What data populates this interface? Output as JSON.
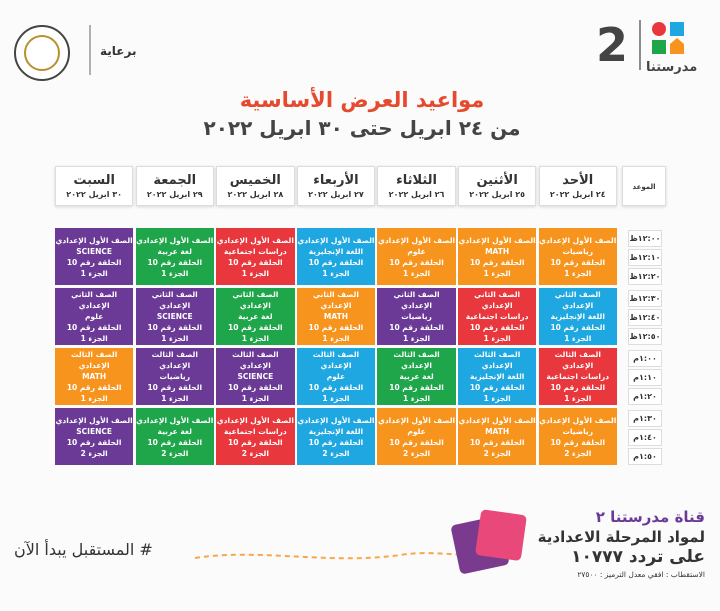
{
  "header": {
    "brand": "مدرستنا",
    "channel_number": "2",
    "sponsor": "برعاية"
  },
  "title": "مواعيد العرض الأساسية",
  "subtitle": "من ٢٤ ابريل حتى ٣٠ ابريل ٢٠٢٢",
  "table": {
    "time_label": "الموعد",
    "columns": [
      {
        "day": "الأحد",
        "date": "٢٤ ابريل ٢٠٢٢"
      },
      {
        "day": "الأثنين",
        "date": "٢٥ ابريل ٢٠٢٢"
      },
      {
        "day": "الثلاثاء",
        "date": "٢٦ ابريل ٢٠٢٢"
      },
      {
        "day": "الأربعاء",
        "date": "٢٧ ابريل ٢٠٢٢"
      },
      {
        "day": "الخميس",
        "date": "٢٨ ابريل ٢٠٢٢"
      },
      {
        "day": "الجمعة",
        "date": "٢٩ ابريل ٢٠٢٢"
      },
      {
        "day": "السبت",
        "date": "٣٠ ابريل ٢٠٢٢"
      }
    ],
    "times": [
      "١٢:٠٠ظ",
      "١٢:١٠ظ",
      "١٢:٢٠ظ",
      "١٢:٣٠ظ",
      "١٢:٤٠ظ",
      "١٢:٥٠ظ",
      "١:٠٠م",
      "١:١٠م",
      "١:٢٠م",
      "١:٣٠م",
      "١:٤٠م",
      "١:٥٠م"
    ],
    "rows": [
      [
        {
          "color": "#f7941d",
          "lines": [
            "الصف الأول الإعدادي",
            "رياضيات",
            "الحلقة رقم 10",
            "الجزء 1"
          ]
        },
        {
          "color": "#f7941d",
          "lines": [
            "الصف الأول الإعدادي",
            "MATH",
            "الحلقة رقم 10",
            "الجزء 1"
          ]
        },
        {
          "color": "#f7941d",
          "lines": [
            "الصف الأول الإعدادي",
            "علوم",
            "الحلقة رقم 10",
            "الجزء 1"
          ]
        },
        {
          "color": "#1ea7e0",
          "lines": [
            "الصف الأول الإعدادي",
            "اللغة الإنجليزية",
            "الحلقة رقم 10",
            "الجزء 1"
          ]
        },
        {
          "color": "#e8383d",
          "lines": [
            "الصف الأول الإعدادي",
            "دراسات اجتماعية",
            "الحلقة رقم 10",
            "الجزء 1"
          ]
        },
        {
          "color": "#1fa54a",
          "lines": [
            "الصف الأول الإعدادي",
            "لغة عربية",
            "الحلقة رقم 10",
            "الجزء 1"
          ]
        },
        {
          "color": "#6a3a96",
          "lines": [
            "الصف الأول الإعدادي",
            "SCIENCE",
            "الحلقة رقم 10",
            "الجزء 1"
          ]
        }
      ],
      [
        {
          "color": "#1ea7e0",
          "lines": [
            "الصف الثاني الإعدادي",
            "اللغة الإنجليزية",
            "الحلقة رقم 10",
            "الجزء 1"
          ]
        },
        {
          "color": "#e8383d",
          "lines": [
            "الصف الثاني الإعدادي",
            "دراسات اجتماعية",
            "الحلقة رقم 10",
            "الجزء 1"
          ]
        },
        {
          "color": "#6a3a96",
          "lines": [
            "الصف الثاني الإعدادي",
            "رياضيات",
            "الحلقة رقم 10",
            "الجزء 1"
          ]
        },
        {
          "color": "#f7941d",
          "lines": [
            "الصف الثاني الإعدادي",
            "MATH",
            "الحلقة رقم 10",
            "الجزء 1"
          ]
        },
        {
          "color": "#1fa54a",
          "lines": [
            "الصف الثاني الإعدادي",
            "لغة عربية",
            "الحلقة رقم 10",
            "الجزء 1"
          ]
        },
        {
          "color": "#6a3a96",
          "lines": [
            "الصف الثاني الإعدادي",
            "SCIENCE",
            "الحلقة رقم 10",
            "الجزء 1"
          ]
        },
        {
          "color": "#6a3a96",
          "lines": [
            "الصف الثاني الإعدادي",
            "علوم",
            "الحلقة رقم 10",
            "الجزء 1"
          ]
        }
      ],
      [
        {
          "color": "#e8383d",
          "lines": [
            "الصف الثالث الإعدادي",
            "دراسات اجتماعية",
            "الحلقة رقم 10",
            "الجزء 1"
          ]
        },
        {
          "color": "#1ea7e0",
          "lines": [
            "الصف الثالث الإعدادي",
            "اللغة الإنجليزية",
            "الحلقة رقم 10",
            "الجزء 1"
          ]
        },
        {
          "color": "#1fa54a",
          "lines": [
            "الصف الثالث الإعدادي",
            "لغة عربية",
            "الحلقة رقم 10",
            "الجزء 1"
          ]
        },
        {
          "color": "#1ea7e0",
          "lines": [
            "الصف الثالث الإعدادي",
            "علوم",
            "الحلقة رقم 10",
            "الجزء 1"
          ]
        },
        {
          "color": "#6a3a96",
          "lines": [
            "الصف الثالث الإعدادي",
            "SCIENCE",
            "الحلقة رقم 10",
            "الجزء 1"
          ]
        },
        {
          "color": "#6a3a96",
          "lines": [
            "الصف الثالث الإعدادي",
            "رياضيات",
            "الحلقة رقم 10",
            "الجزء 1"
          ]
        },
        {
          "color": "#f7941d",
          "lines": [
            "الصف الثالث الإعدادي",
            "MATH",
            "الحلقة رقم 10",
            "الجزء 1"
          ]
        }
      ],
      [
        {
          "color": "#f7941d",
          "lines": [
            "الصف الأول الإعدادي",
            "رياضيات",
            "الحلقة رقم 10",
            "الجزء 2"
          ]
        },
        {
          "color": "#f7941d",
          "lines": [
            "الصف الأول الإعدادي",
            "MATH",
            "الحلقة رقم 10",
            "الجزء 2"
          ]
        },
        {
          "color": "#f7941d",
          "lines": [
            "الصف الأول الإعدادي",
            "علوم",
            "الحلقة رقم 10",
            "الجزء 2"
          ]
        },
        {
          "color": "#1ea7e0",
          "lines": [
            "الصف الأول الإعدادي",
            "اللغة الإنجليزية",
            "الحلقة رقم 10",
            "الجزء 2"
          ]
        },
        {
          "color": "#e8383d",
          "lines": [
            "الصف الأول الإعدادي",
            "دراسات اجتماعية",
            "الحلقة رقم 10",
            "الجزء 2"
          ]
        },
        {
          "color": "#1fa54a",
          "lines": [
            "الصف الأول الإعدادي",
            "لغة عربية",
            "الحلقة رقم 10",
            "الجزء 2"
          ]
        },
        {
          "color": "#6a3a96",
          "lines": [
            "الصف الأول الإعدادي",
            "SCIENCE",
            "الحلقة رقم 10",
            "الجزء 2"
          ]
        }
      ]
    ]
  },
  "footer": {
    "channel": "قناة مدرستنا ٢",
    "stage": "لمواد المرحلة الاعدادية",
    "frequency": "على تردد ١٠٧٧٧",
    "details": "الاستقطاب : افقي معدل الترميز : ٢٧٥٠٠",
    "slogan": "# المستقبل يبدأ الآن"
  }
}
